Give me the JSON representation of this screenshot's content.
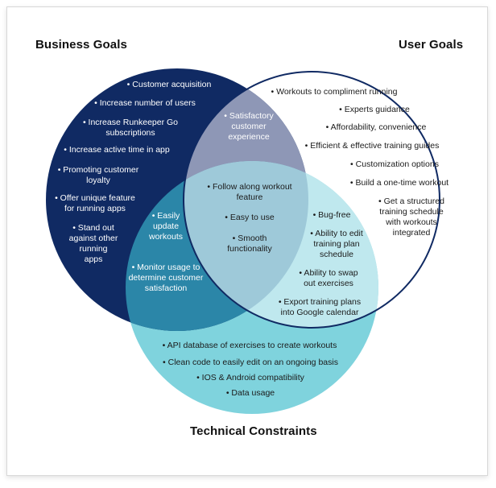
{
  "headings": {
    "business": "Business Goals",
    "user": "User Goals",
    "technical": "Technical Constraints"
  },
  "colors": {
    "business_fill": "#102a63",
    "technical_fill": "#7fd3dd",
    "user_stroke": "#102a63",
    "business_tech_overlap": "#2b86a8",
    "business_user_overlap": "#8e97b6",
    "user_tech_overlap": "#bfe8ee",
    "center_overlap": "#9ec9d9"
  },
  "business_items": [
    "• Customer acquisition",
    "• Increase number of users",
    "• Increase Runkeeper Go\nsubscriptions",
    "• Increase active time in app",
    "• Promoting customer\nloyalty",
    "• Offer unique feature\nfor running apps",
    "• Stand out\nagainst other\nrunning\napps"
  ],
  "user_items": [
    "• Workouts to compliment running",
    "• Experts guidance",
    "• Affordability, convenience",
    "• Efficient & effective training guides",
    "• Customization options",
    "• Build a one-time workout",
    "• Get a structured\ntraining schedule\nwith workouts\nintegrated"
  ],
  "business_user_items": [
    "• Satisfactory\ncustomer\nexperience"
  ],
  "business_tech_items": [
    "• Easily\nupdate\nworkouts",
    "• Monitor usage to\ndetermine customer\nsatisfaction"
  ],
  "center_items": [
    "• Follow along workout\nfeature",
    "• Easy to use",
    "• Smooth\nfunctionality"
  ],
  "user_tech_items": [
    "• Bug-free",
    "• Ability to edit\ntraining plan\nschedule",
    "• Ability to swap\nout exercises",
    "• Export training plans\ninto Google calendar"
  ],
  "technical_items": [
    "• API database of exercises to create workouts",
    "• Clean code to easily edit on an ongoing basis",
    "• IOS & Android compatibility",
    "• Data usage"
  ]
}
